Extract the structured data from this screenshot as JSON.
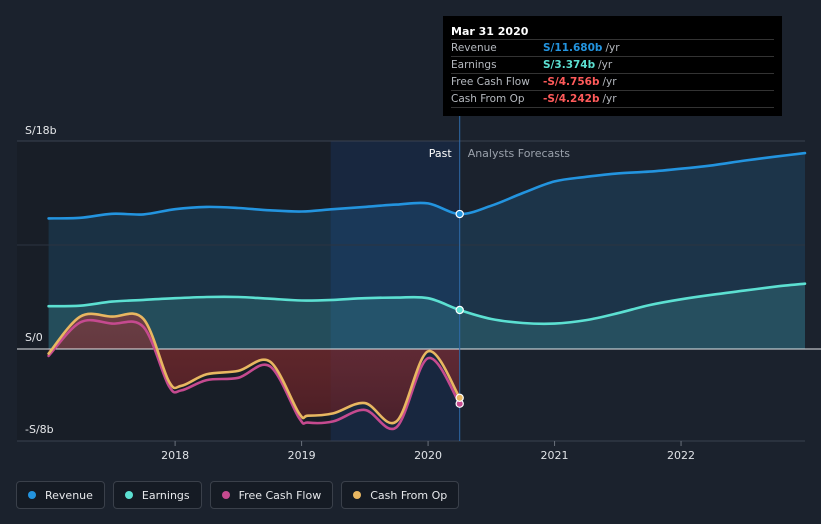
{
  "chart_data": {
    "type": "area",
    "y_axis_labels": {
      "top": "S/18b",
      "zero": "S/0",
      "bottom": "-S/8b"
    },
    "ylim": [
      -8,
      18
    ],
    "x_ticks": [
      "2018",
      "2019",
      "2020",
      "2021",
      "2022"
    ],
    "x_tick_values": [
      2018,
      2019,
      2020,
      2021,
      2022
    ],
    "xlim": [
      2016.75,
      2022.98
    ],
    "past_label": "Past",
    "forecast_label": "Analysts Forecasts",
    "divider_x": 2020.25,
    "highlight_range": [
      2019.23,
      2020.25
    ],
    "series": [
      {
        "name": "Revenue",
        "color": "#2394df",
        "fill": true,
        "points": [
          [
            2017.0,
            11.3
          ],
          [
            2017.25,
            11.35
          ],
          [
            2017.5,
            11.7
          ],
          [
            2017.75,
            11.65
          ],
          [
            2018.0,
            12.1
          ],
          [
            2018.25,
            12.3
          ],
          [
            2018.5,
            12.2
          ],
          [
            2018.75,
            12.0
          ],
          [
            2019.0,
            11.9
          ],
          [
            2019.25,
            12.1
          ],
          [
            2019.5,
            12.3
          ],
          [
            2019.75,
            12.5
          ],
          [
            2020.0,
            12.6
          ],
          [
            2020.25,
            11.68
          ],
          [
            2020.5,
            12.4
          ],
          [
            2020.75,
            13.5
          ],
          [
            2021.0,
            14.5
          ],
          [
            2021.25,
            14.9
          ],
          [
            2021.5,
            15.2
          ],
          [
            2021.75,
            15.35
          ],
          [
            2022.0,
            15.6
          ],
          [
            2022.25,
            15.9
          ],
          [
            2022.5,
            16.3
          ],
          [
            2022.75,
            16.65
          ],
          [
            2022.98,
            16.95
          ]
        ]
      },
      {
        "name": "Earnings",
        "color": "#5ce0d2",
        "fill": true,
        "points": [
          [
            2017.0,
            3.7
          ],
          [
            2017.25,
            3.75
          ],
          [
            2017.5,
            4.1
          ],
          [
            2017.75,
            4.25
          ],
          [
            2018.0,
            4.4
          ],
          [
            2018.25,
            4.5
          ],
          [
            2018.5,
            4.5
          ],
          [
            2018.75,
            4.35
          ],
          [
            2019.0,
            4.2
          ],
          [
            2019.25,
            4.25
          ],
          [
            2019.5,
            4.4
          ],
          [
            2019.75,
            4.45
          ],
          [
            2020.0,
            4.4
          ],
          [
            2020.25,
            3.374
          ],
          [
            2020.5,
            2.6
          ],
          [
            2020.75,
            2.25
          ],
          [
            2021.0,
            2.2
          ],
          [
            2021.25,
            2.5
          ],
          [
            2021.5,
            3.1
          ],
          [
            2021.75,
            3.8
          ],
          [
            2022.0,
            4.3
          ],
          [
            2022.25,
            4.7
          ],
          [
            2022.5,
            5.05
          ],
          [
            2022.75,
            5.4
          ],
          [
            2022.98,
            5.65
          ]
        ]
      },
      {
        "name": "Free Cash Flow",
        "color": "#c54a8f",
        "fill": false,
        "points": [
          [
            2017.0,
            -0.6
          ],
          [
            2017.25,
            2.3
          ],
          [
            2017.5,
            2.2
          ],
          [
            2017.75,
            1.9
          ],
          [
            2017.95,
            -3.2
          ],
          [
            2018.05,
            -3.6
          ],
          [
            2018.25,
            -2.7
          ],
          [
            2018.5,
            -2.5
          ],
          [
            2018.75,
            -1.5
          ],
          [
            2018.98,
            -6.0
          ],
          [
            2019.05,
            -6.4
          ],
          [
            2019.25,
            -6.3
          ],
          [
            2019.5,
            -5.3
          ],
          [
            2019.75,
            -6.8
          ],
          [
            2020.0,
            -0.8
          ],
          [
            2020.25,
            -4.756
          ]
        ]
      },
      {
        "name": "Cash From Op",
        "color": "#e8b761",
        "fill": false,
        "points": [
          [
            2017.0,
            -0.4
          ],
          [
            2017.25,
            2.8
          ],
          [
            2017.5,
            2.8
          ],
          [
            2017.75,
            2.6
          ],
          [
            2017.95,
            -2.8
          ],
          [
            2018.05,
            -3.2
          ],
          [
            2018.25,
            -2.2
          ],
          [
            2018.5,
            -1.9
          ],
          [
            2018.75,
            -1.1
          ],
          [
            2018.98,
            -5.6
          ],
          [
            2019.05,
            -5.8
          ],
          [
            2019.25,
            -5.6
          ],
          [
            2019.5,
            -4.7
          ],
          [
            2019.75,
            -6.3
          ],
          [
            2020.0,
            -0.2
          ],
          [
            2020.25,
            -4.242
          ]
        ]
      }
    ]
  },
  "tooltip": {
    "date": "Mar 31 2020",
    "rows": [
      {
        "label": "Revenue",
        "value": "S/11.680b",
        "unit": "/yr",
        "color": "#2394df"
      },
      {
        "label": "Earnings",
        "value": "S/3.374b",
        "unit": "/yr",
        "color": "#5ce0d2"
      },
      {
        "label": "Free Cash Flow",
        "value": "-S/4.756b",
        "unit": "/yr",
        "color": "#ff5a5a"
      },
      {
        "label": "Cash From Op",
        "value": "-S/4.242b",
        "unit": "/yr",
        "color": "#ff5a5a"
      }
    ]
  },
  "legend": [
    {
      "label": "Revenue",
      "color": "#2394df"
    },
    {
      "label": "Earnings",
      "color": "#5ce0d2"
    },
    {
      "label": "Free Cash Flow",
      "color": "#c54a8f"
    },
    {
      "label": "Cash From Op",
      "color": "#e8b761"
    }
  ]
}
